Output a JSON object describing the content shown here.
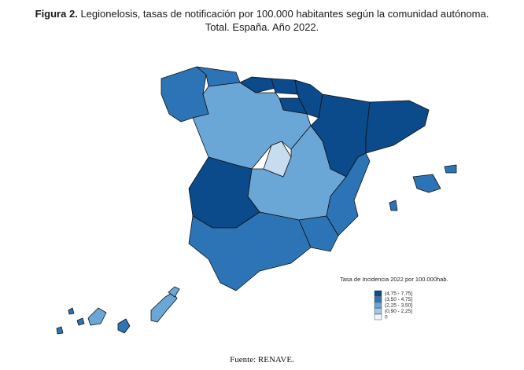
{
  "header": {
    "label": "Figura 2.",
    "title": "Legionelosis, tasas de notificación por 100.000 habitantes según la comunidad autónoma.",
    "subtitle": "Total. España. Año 2022."
  },
  "legend": {
    "title": "Tasa de Incidencia 2022 por 100.000hab.",
    "items": [
      {
        "label": "(4,75 - 7,75]",
        "color": "#0b4a8b"
      },
      {
        "label": "(3,50 - 4,75]",
        "color": "#2d74b6"
      },
      {
        "label": "(2,25 - 3,50]",
        "color": "#6aa6d6"
      },
      {
        "label": "(0,90 - 2,25]",
        "color": "#a6c8e6"
      },
      {
        "label": "0",
        "color": "#eef4fa"
      }
    ]
  },
  "source": "Fuente: RENAVE."
}
